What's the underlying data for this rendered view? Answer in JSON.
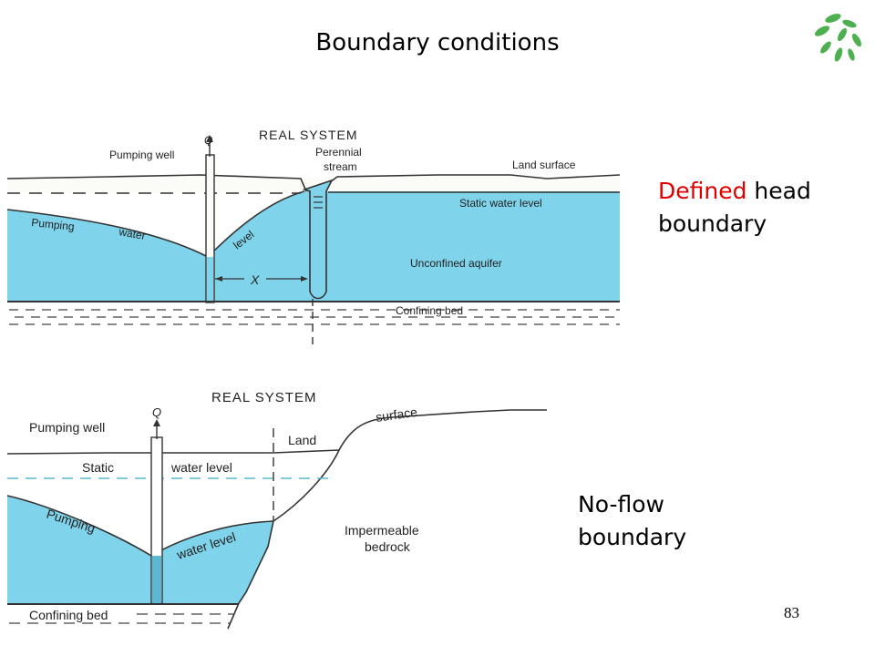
{
  "slide": {
    "title": "Boundary conditions",
    "page_number": "83"
  },
  "labels": {
    "defined_red": "Defined",
    "defined_rest": " head",
    "defined_line2": "boundary",
    "noflow_line1": "No-flow",
    "noflow_line2": "boundary"
  },
  "figure1": {
    "title": "REAL SYSTEM",
    "q": "Q",
    "pumping_well": "Pumping well",
    "perennial": "Perennial",
    "stream": "stream",
    "land_surface": "Land surface",
    "static_water_level": "Static water level",
    "pumping": "Pumping",
    "water": "water",
    "level": "level",
    "unconfined_aquifer": "Unconfined aquifer",
    "x": "X",
    "confining_bed": "Confining bed"
  },
  "figure2": {
    "title": "REAL SYSTEM",
    "q": "Q",
    "pumping_well": "Pumping well",
    "land": "Land",
    "surface": "surface",
    "static": "Static",
    "water_level": "water level",
    "pumping": "Pumping",
    "water_level_curve": "water level",
    "impermeable": "Impermeable",
    "bedrock": "bedrock",
    "confining_bed": "Confining bed"
  },
  "colors": {
    "water": "#7fd3ea",
    "logo_green": "#4caf50"
  }
}
